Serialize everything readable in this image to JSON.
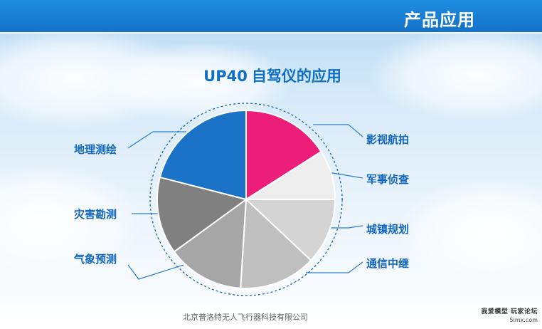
{
  "header": {
    "title": "产品应用"
  },
  "main": {
    "title_model": "UP40",
    "title_text": "自驾仪的应用"
  },
  "applications": [
    {
      "label": "影视航拍",
      "color": "#ed1e79",
      "share": 0.16
    },
    {
      "label": "军事侦查",
      "color": "#eeeeee",
      "share": 0.09
    },
    {
      "label": "城镇规划",
      "color": "#d4d4d4",
      "share": 0.12
    },
    {
      "label": "通信中继",
      "color": "#bfbfbf",
      "share": 0.14
    },
    {
      "label": "气象预测",
      "color": "#a6a6a6",
      "share": 0.14
    },
    {
      "label": "灾害勘测",
      "color": "#808080",
      "share": 0.14
    },
    {
      "label": "地理测绘",
      "color": "#1a73c6",
      "share": 0.21
    }
  ],
  "footer": {
    "company": "北京普洛特无人飞行器科技有限公司"
  },
  "watermark": {
    "line1": "我爱模型 玩家论坛",
    "line2": "5imx.com"
  }
}
